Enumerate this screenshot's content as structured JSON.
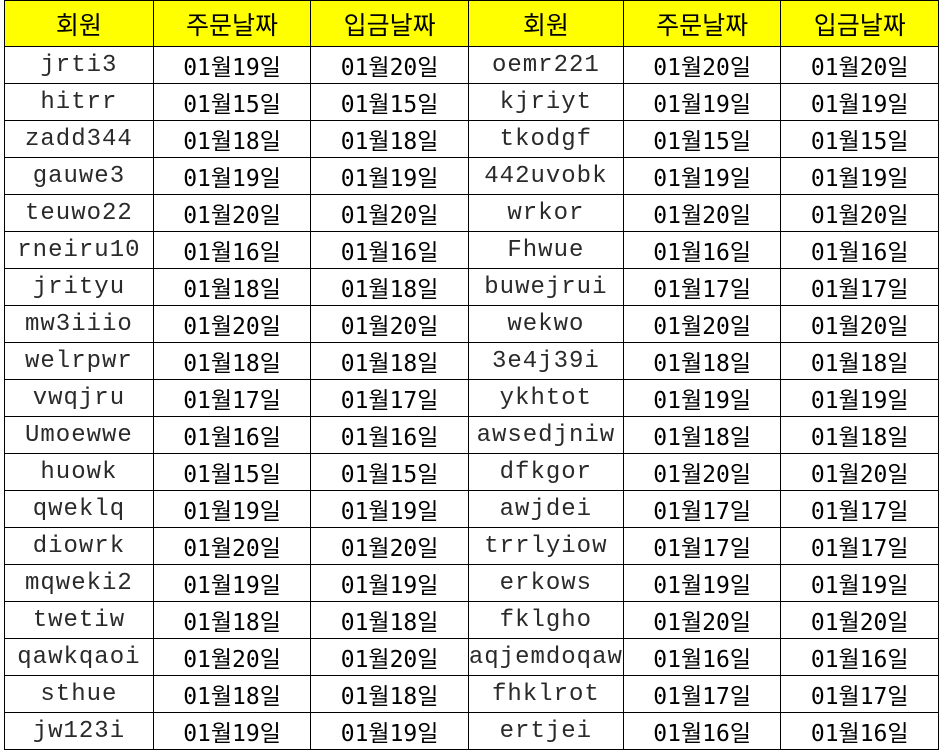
{
  "headers": [
    "회원",
    "주문날짜",
    "입금날짜",
    "회원",
    "주문날짜",
    "입금날짜"
  ],
  "rows": [
    [
      "jrti3",
      "01월19일",
      "01월20일",
      "oemr221",
      "01월20일",
      "01월20일"
    ],
    [
      "hitrr",
      "01월15일",
      "01월15일",
      "kjriyt",
      "01월19일",
      "01월19일"
    ],
    [
      "zadd344",
      "01월18일",
      "01월18일",
      "tkodgf",
      "01월15일",
      "01월15일"
    ],
    [
      "gauwe3",
      "01월19일",
      "01월19일",
      "442uvobk",
      "01월19일",
      "01월19일"
    ],
    [
      "teuwo22",
      "01월20일",
      "01월20일",
      "wrkor",
      "01월20일",
      "01월20일"
    ],
    [
      "rneiru10",
      "01월16일",
      "01월16일",
      "Fhwue",
      "01월16일",
      "01월16일"
    ],
    [
      "jrityu",
      "01월18일",
      "01월18일",
      "buwejrui",
      "01월17일",
      "01월17일"
    ],
    [
      "mw3iiio",
      "01월20일",
      "01월20일",
      "wekwo",
      "01월20일",
      "01월20일"
    ],
    [
      "welrpwr",
      "01월18일",
      "01월18일",
      "3e4j39i",
      "01월18일",
      "01월18일"
    ],
    [
      "vwqjru",
      "01월17일",
      "01월17일",
      "ykhtot",
      "01월19일",
      "01월19일"
    ],
    [
      "Umoewwe",
      "01월16일",
      "01월16일",
      "awsedjniw",
      "01월18일",
      "01월18일"
    ],
    [
      "huowk",
      "01월15일",
      "01월15일",
      "dfkgor",
      "01월20일",
      "01월20일"
    ],
    [
      "qweklq",
      "01월19일",
      "01월19일",
      "awjdei",
      "01월17일",
      "01월17일"
    ],
    [
      "diowrk",
      "01월20일",
      "01월20일",
      "trrlyiow",
      "01월17일",
      "01월17일"
    ],
    [
      "mqweki2",
      "01월19일",
      "01월19일",
      "erkows",
      "01월19일",
      "01월19일"
    ],
    [
      "twetiw",
      "01월18일",
      "01월18일",
      "fklgho",
      "01월20일",
      "01월20일"
    ],
    [
      "qawkqaoi",
      "01월20일",
      "01월20일",
      "aqjemdoqaw",
      "01월16일",
      "01월16일"
    ],
    [
      "sthue",
      "01월18일",
      "01월18일",
      "fhklrot",
      "01월17일",
      "01월17일"
    ],
    [
      "jw123i",
      "01월19일",
      "01월19일",
      "ertjei",
      "01월16일",
      "01월16일"
    ]
  ],
  "colors": {
    "header_bg": "#ffff00"
  }
}
